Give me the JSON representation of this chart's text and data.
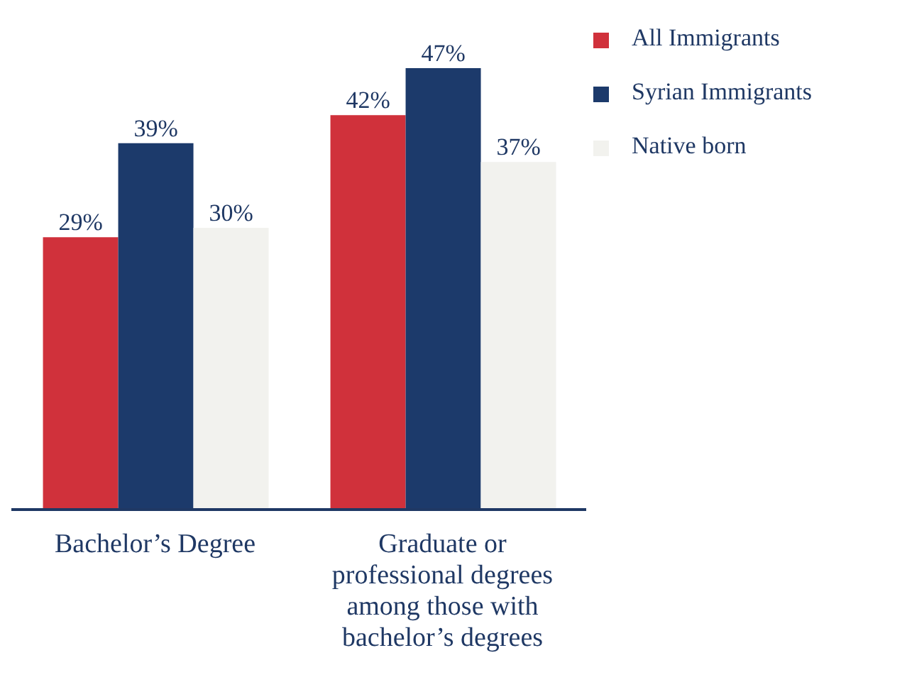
{
  "chart_data": {
    "type": "bar",
    "categories": [
      "Bachelor’s Degree",
      "Graduate or professional degrees among those with bachelor’s degrees"
    ],
    "series": [
      {
        "name": "All Immigrants",
        "color": "#d0313b",
        "values": [
          29,
          42
        ],
        "value_labels": [
          "29%",
          "42%"
        ]
      },
      {
        "name": "Syrian Immigrants",
        "color": "#1c3a6b",
        "values": [
          39,
          47
        ],
        "value_labels": [
          "39%",
          "47%"
        ]
      },
      {
        "name": "Native born",
        "color": "#f2f2ee",
        "values": [
          30,
          37
        ],
        "value_labels": [
          "30%",
          "37%"
        ]
      }
    ],
    "legend": "top right",
    "grid": false
  }
}
